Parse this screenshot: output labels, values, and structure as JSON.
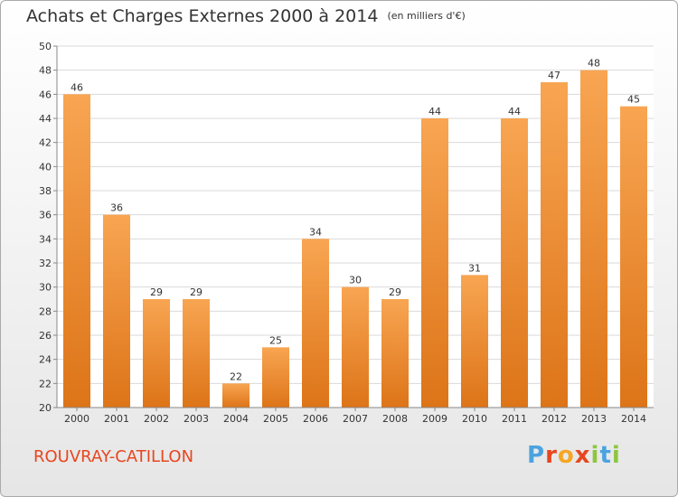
{
  "chart_data": {
    "type": "bar",
    "title": "Achats et Charges Externes 2000 à 2014",
    "subtitle": "(en milliers d'€)",
    "categories": [
      "2000",
      "2001",
      "2002",
      "2003",
      "2004",
      "2005",
      "2006",
      "2007",
      "2008",
      "2009",
      "2010",
      "2011",
      "2012",
      "2013",
      "2014"
    ],
    "values": [
      46,
      36,
      29,
      29,
      22,
      25,
      34,
      30,
      29,
      44,
      31,
      44,
      47,
      48,
      45
    ],
    "ylim": [
      20,
      50
    ],
    "yticks": [
      20,
      22,
      24,
      26,
      28,
      30,
      32,
      34,
      36,
      38,
      40,
      42,
      44,
      46,
      48,
      50
    ],
    "grid": true,
    "bar_color": "#f0923a"
  },
  "footer": {
    "city": "ROUVRAY-CATILLON",
    "logo": [
      "P",
      "r",
      "o",
      "x",
      "i",
      "t",
      "i"
    ],
    "logo_colors": [
      "#4aa3df",
      "#e8461e",
      "#f5a623",
      "#e8461e",
      "#8dc63f",
      "#4aa3df",
      "#8dc63f"
    ]
  }
}
